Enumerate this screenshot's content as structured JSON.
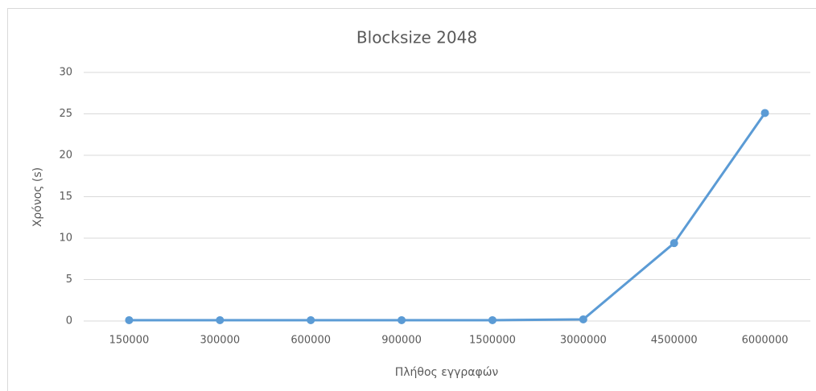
{
  "chart_data": {
    "type": "line",
    "title": "Blocksize 2048",
    "x_label": "Πλήθος εγγραφών",
    "y_label": "Χρόνος (s)",
    "categories": [
      "150000",
      "300000",
      "600000",
      "900000",
      "1500000",
      "3000000",
      "4500000",
      "6000000"
    ],
    "series": [
      {
        "name": "Χρόνος (s)",
        "color": "#5b9bd5",
        "values": [
          0.1,
          0.1,
          0.1,
          0.1,
          0.1,
          0.2,
          9.4,
          25.1
        ]
      }
    ],
    "ylim": [
      0,
      30
    ],
    "yticks": [
      0,
      5,
      10,
      15,
      20,
      25,
      30
    ],
    "grid": true
  }
}
